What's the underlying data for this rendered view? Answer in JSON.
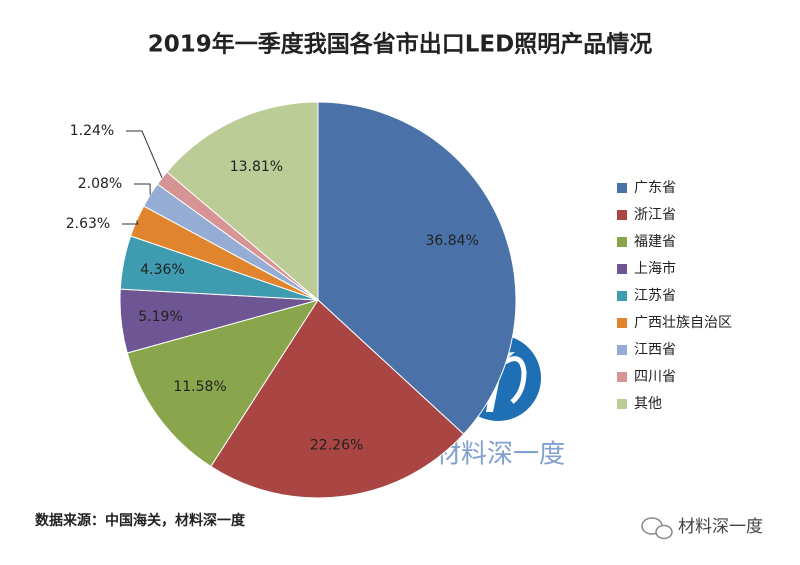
{
  "chart_data": {
    "type": "pie",
    "title": "2019年一季度我国各省市出口LED照明产品情况",
    "categories": [
      "广东省",
      "浙江省",
      "福建省",
      "上海市",
      "江苏省",
      "广西壮族自治区",
      "江西省",
      "四川省",
      "其他"
    ],
    "values": [
      36.84,
      22.26,
      11.58,
      5.19,
      4.36,
      2.63,
      2.08,
      1.24,
      13.81
    ],
    "value_labels": [
      "36.84%",
      "22.26%",
      "11.58%",
      "5.19%",
      "4.36%",
      "2.63%",
      "2.08%",
      "1.24%",
      "13.81%"
    ],
    "colors": [
      "#4a72a8",
      "#a94643",
      "#8aa64d",
      "#6e5594",
      "#3e9bb0",
      "#e0852e",
      "#95acd4",
      "#d69594",
      "#bccc97"
    ],
    "legend": "right",
    "source": "数据来源：中国海关，材料深一度",
    "watermark": "材料深一度",
    "brand": "材料深一度"
  }
}
